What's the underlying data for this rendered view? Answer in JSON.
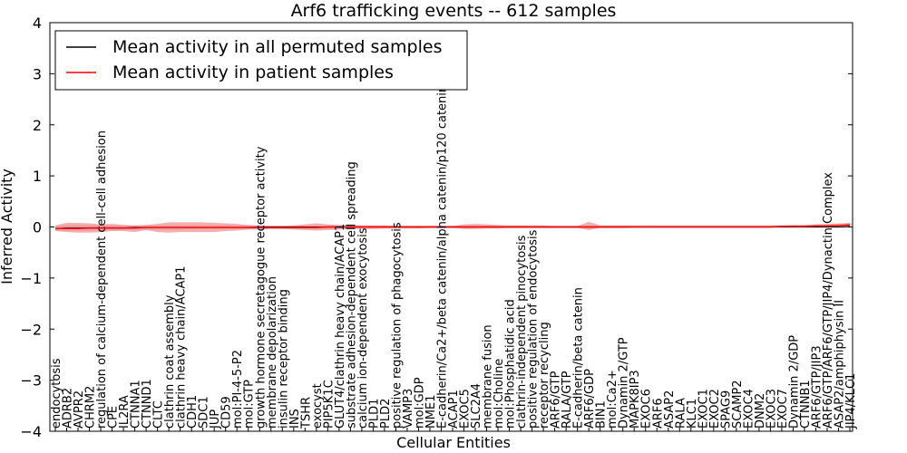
{
  "chart_data": {
    "type": "line",
    "title": "Arf6 trafficking events -- 612 samples",
    "xlabel": "Cellular Entities",
    "ylabel": "Inferred Activity",
    "ylim": [
      -4,
      4
    ],
    "yticks": [
      -4,
      -3,
      -2,
      -1,
      0,
      1,
      2,
      3,
      4
    ],
    "ytick_labels": [
      "−4",
      "−3",
      "−2",
      "−1",
      "0",
      "1",
      "2",
      "3",
      "4"
    ],
    "legend_position": "top-left",
    "categories": [
      "endocytosis",
      "ADRB2",
      "AVPR2",
      "CHRM2",
      "regulation of calcium-dependent cell-cell adhesion",
      "CPE",
      "IL2RA",
      "CTNNA1",
      "CTNND1",
      "CLTC",
      "clathrin coat assembly",
      "clathrin heavy chain/ACAP1",
      "CDH1",
      "SDC1",
      "JUP",
      "CD59",
      "mol:PI-4-5-P2",
      "mol:GTP",
      "growth hormone secretagogue receptor activity",
      "membrane depolarization",
      "insulin receptor binding",
      "INS",
      "TSHR",
      "exocyst",
      "PIP5K1C",
      "GLUT4/clathrin heavy chain/ACAP1",
      "substrate adhesion-dependent cell spreading",
      "calcium ion-dependent exocytosis",
      "PLD1",
      "PLD2",
      "positive regulation of phagocytosis",
      "VAMP3",
      "mol:GDP",
      "NME1",
      "E-cadherin/Ca2+/beta catenin/alpha catenin/p120 catenin",
      "ACAP1",
      "EXOC5",
      "SLC2A4",
      "membrane fusion",
      "mol:Choline",
      "mol:Phosphatidic acid",
      "clathrin-independent pinocytosis",
      "positive regulation of endocytosis",
      "receptor recycling",
      "ARF6/GTP",
      "RALA/GTP",
      "E-cadherin/beta catenin",
      "ARF6/GDP",
      "BIN1",
      "mol:Ca2+",
      "Dynamin 2/GTP",
      "MAPK8IP3",
      "EXOC6",
      "ARF6",
      "ASAP2",
      "RALA",
      "KLC1",
      "EXOC1",
      "EXOC2",
      "SPAG9",
      "SCAMP2",
      "EXOC4",
      "DNM2",
      "EXOC3",
      "EXOC7",
      "Dynamin 2/GDP",
      "CTNNB1",
      "ARF6/GTP/JIP3",
      "ARF6/GTP/ARF6/GTP/JIP4/Dynactin Complex",
      "ASAP2/amphiphysin II",
      "JIP4/KLC1"
    ],
    "series": [
      {
        "name": "Mean activity in all permuted samples",
        "color": "#000000",
        "values": [
          -0.03,
          -0.02,
          -0.02,
          -0.02,
          -0.02,
          -0.02,
          -0.02,
          -0.01,
          -0.01,
          -0.01,
          -0.01,
          -0.01,
          -0.01,
          -0.01,
          -0.01,
          -0.01,
          -0.01,
          -0.01,
          0.0,
          0.0,
          0.0,
          0.0,
          0.0,
          0.0,
          0.0,
          0.0,
          0.0,
          0.0,
          0.0,
          0.0,
          0.0,
          0.0,
          0.0,
          0.0,
          0.0,
          0.0,
          0.0,
          0.0,
          0.0,
          0.0,
          0.0,
          0.0,
          0.0,
          0.0,
          0.0,
          0.0,
          0.0,
          0.0,
          0.0,
          0.0,
          0.0,
          0.0,
          0.0,
          0.0,
          0.0,
          0.0,
          0.0,
          0.0,
          0.0,
          0.0,
          0.0,
          0.0,
          0.0,
          0.0,
          0.0,
          0.0,
          0.0,
          0.0,
          0.0,
          0.0,
          0.01
        ],
        "band_lower": [
          -0.07,
          -0.07,
          -0.07,
          -0.07,
          -0.06,
          -0.06,
          -0.06,
          -0.05,
          -0.05,
          -0.05,
          -0.05,
          -0.05,
          -0.04,
          -0.04,
          -0.04,
          -0.04,
          -0.04,
          -0.04,
          -0.04,
          -0.04,
          -0.04,
          -0.04,
          -0.04,
          -0.04,
          -0.04,
          -0.03,
          -0.03,
          -0.03,
          -0.03,
          -0.03,
          -0.03,
          -0.03,
          -0.03,
          -0.03,
          -0.03,
          -0.03,
          -0.03,
          -0.03,
          -0.03,
          -0.03,
          -0.03,
          -0.03,
          -0.03,
          -0.03,
          -0.03,
          -0.03,
          -0.03,
          -0.03,
          -0.03,
          -0.03,
          -0.03,
          -0.03,
          -0.03,
          -0.03,
          -0.03,
          -0.03,
          -0.03,
          -0.03,
          -0.03,
          -0.03,
          -0.03,
          -0.03,
          -0.03,
          -0.03,
          -0.03,
          -0.03,
          -0.03,
          -0.03,
          -0.03,
          -0.03,
          -0.02
        ],
        "band_upper": [
          0.01,
          0.03,
          0.03,
          0.03,
          0.03,
          0.03,
          0.03,
          0.03,
          0.03,
          0.03,
          0.03,
          0.03,
          0.03,
          0.03,
          0.03,
          0.03,
          0.03,
          0.03,
          0.03,
          0.03,
          0.03,
          0.03,
          0.03,
          0.03,
          0.03,
          0.03,
          0.03,
          0.03,
          0.03,
          0.03,
          0.03,
          0.03,
          0.03,
          0.03,
          0.03,
          0.03,
          0.03,
          0.03,
          0.03,
          0.03,
          0.03,
          0.03,
          0.03,
          0.03,
          0.03,
          0.03,
          0.03,
          0.03,
          0.03,
          0.03,
          0.03,
          0.03,
          0.03,
          0.03,
          0.03,
          0.03,
          0.03,
          0.03,
          0.03,
          0.03,
          0.03,
          0.03,
          0.03,
          0.03,
          0.03,
          0.03,
          0.03,
          0.03,
          0.03,
          0.03,
          0.04
        ]
      },
      {
        "name": "Mean activity in patient samples",
        "color": "#ff0000",
        "values": [
          -0.03,
          -0.03,
          -0.03,
          -0.02,
          -0.02,
          -0.02,
          -0.02,
          -0.02,
          -0.01,
          -0.01,
          -0.01,
          -0.01,
          -0.01,
          -0.01,
          -0.01,
          -0.01,
          -0.01,
          -0.01,
          -0.01,
          -0.01,
          -0.01,
          -0.01,
          -0.01,
          -0.01,
          0.0,
          0.0,
          0.0,
          0.0,
          0.0,
          0.0,
          0.0,
          0.0,
          0.0,
          0.0,
          0.0,
          0.0,
          0.0,
          0.0,
          0.0,
          0.0,
          0.0,
          0.0,
          0.0,
          0.0,
          0.0,
          0.0,
          0.0,
          0.0,
          0.0,
          0.0,
          0.0,
          0.0,
          0.0,
          0.0,
          0.0,
          0.0,
          0.0,
          0.0,
          0.0,
          0.0,
          0.0,
          0.0,
          0.0,
          0.0,
          0.01,
          0.01,
          0.01,
          0.02,
          0.02,
          0.03,
          0.04
        ],
        "band_lower": [
          -0.08,
          -0.1,
          -0.11,
          -0.11,
          -0.1,
          -0.08,
          -0.08,
          -0.1,
          -0.06,
          -0.1,
          -0.11,
          -0.1,
          -0.1,
          -0.1,
          -0.1,
          -0.08,
          -0.07,
          -0.05,
          -0.05,
          -0.04,
          -0.04,
          -0.05,
          -0.06,
          -0.07,
          -0.06,
          -0.05,
          -0.04,
          -0.04,
          -0.04,
          -0.03,
          -0.03,
          -0.03,
          -0.03,
          -0.02,
          -0.02,
          -0.02,
          -0.04,
          -0.04,
          -0.03,
          -0.03,
          -0.02,
          -0.02,
          -0.02,
          -0.02,
          -0.02,
          -0.02,
          -0.02,
          -0.06,
          -0.02,
          -0.02,
          -0.02,
          -0.01,
          -0.01,
          -0.01,
          -0.01,
          -0.01,
          -0.01,
          -0.01,
          -0.01,
          -0.01,
          -0.01,
          -0.01,
          -0.01,
          -0.01,
          -0.01,
          -0.01,
          -0.01,
          -0.01,
          -0.01,
          -0.01,
          0.0
        ],
        "band_upper": [
          0.03,
          0.08,
          0.08,
          0.07,
          0.05,
          0.06,
          0.04,
          0.03,
          0.04,
          0.06,
          0.09,
          0.09,
          0.09,
          0.09,
          0.08,
          0.07,
          0.06,
          0.04,
          0.03,
          0.02,
          0.02,
          0.03,
          0.05,
          0.07,
          0.05,
          0.04,
          0.04,
          0.03,
          0.03,
          0.03,
          0.02,
          0.02,
          0.02,
          0.02,
          0.02,
          0.02,
          0.05,
          0.06,
          0.05,
          0.04,
          0.03,
          0.03,
          0.03,
          0.03,
          0.02,
          0.02,
          0.02,
          0.1,
          0.03,
          0.03,
          0.03,
          0.03,
          0.03,
          0.03,
          0.03,
          0.03,
          0.03,
          0.03,
          0.03,
          0.03,
          0.03,
          0.03,
          0.03,
          0.03,
          0.03,
          0.04,
          0.04,
          0.05,
          0.06,
          0.07,
          0.08
        ]
      }
    ]
  }
}
